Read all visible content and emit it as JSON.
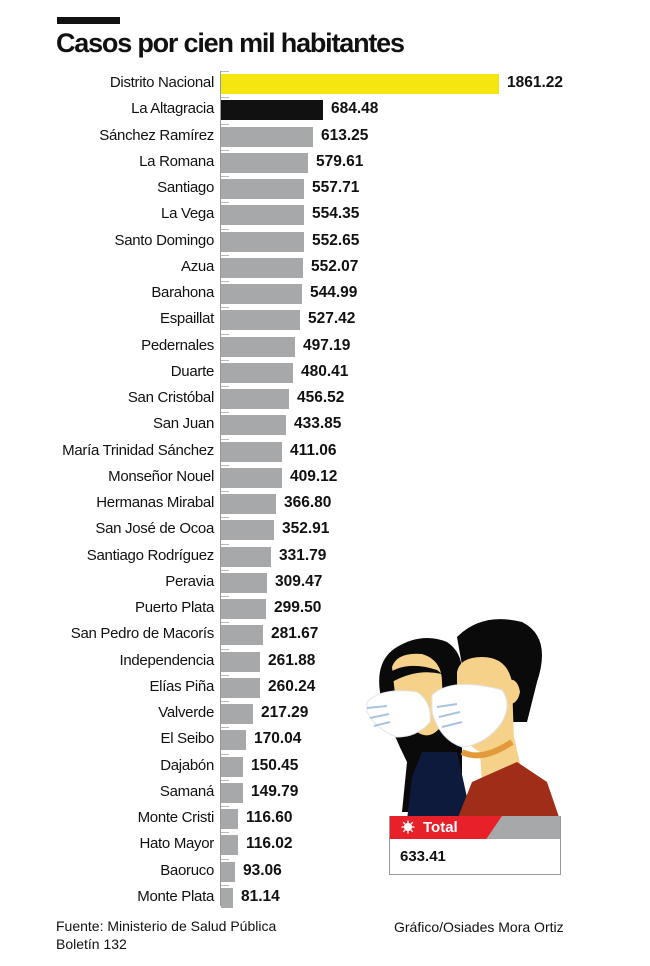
{
  "header": {
    "title": "Casos por cien mil habitantes"
  },
  "footer": {
    "source_line1": "Fuente: Ministerio de Salud Pública",
    "source_line2": "Boletín 132",
    "credit": "Gráfico/Osiades Mora Ortiz"
  },
  "total_box": {
    "label": "Total",
    "value": "633.41",
    "icon": "virus-icon"
  },
  "colors": {
    "highlight_first": "#f5e60f",
    "highlight_second": "#111111",
    "default_bar": "#a7a8aa",
    "total_accent": "#e8202a"
  },
  "chart_data": {
    "type": "bar",
    "orientation": "horizontal",
    "title": "Casos por cien mil habitantes",
    "xlabel": "",
    "ylabel": "",
    "grid": false,
    "legend": "none",
    "xlim": [
      0,
      1861.22
    ],
    "categories": [
      "Distrito Nacional",
      "La Altagracia",
      "Sánchez Ramírez",
      "La Romana",
      "Santiago",
      "La Vega",
      "Santo Domingo",
      "Azua",
      "Barahona",
      "Espaillat",
      "Pedernales",
      "Duarte",
      "San Cristóbal",
      "San Juan",
      "María Trinidad Sánchez",
      "Monseñor Nouel",
      "Hermanas Mirabal",
      "San José de Ocoa",
      "Santiago Rodríguez",
      "Peravia",
      "Puerto Plata",
      "San Pedro de Macorís",
      "Independencia",
      "Elías Piña",
      "Valverde",
      "El Seibo",
      "Dajabón",
      "Samaná",
      "Monte Cristi",
      "Hato Mayor",
      "Baoruco",
      "Monte Plata"
    ],
    "values": [
      1861.22,
      684.48,
      613.25,
      579.61,
      557.71,
      554.35,
      552.65,
      552.07,
      544.99,
      527.42,
      497.19,
      480.41,
      456.52,
      433.85,
      411.06,
      409.12,
      366.8,
      352.91,
      331.79,
      309.47,
      299.5,
      281.67,
      261.88,
      260.24,
      217.29,
      170.04,
      150.45,
      149.79,
      116.6,
      116.02,
      93.06,
      81.14
    ],
    "value_labels": [
      "1861.22",
      "684.48",
      "613.25",
      "579.61",
      "557.71",
      "554.35",
      "552.65",
      "552.07",
      "544.99",
      "527.42",
      "497.19",
      "480.41",
      "456.52",
      "433.85",
      "411.06",
      "409.12",
      "366.80",
      "352.91",
      "331.79",
      "309.47",
      "299.50",
      "281.67",
      "261.88",
      "260.24",
      "217.29",
      "170.04",
      "150.45",
      "149.79",
      "116.60",
      "116.02",
      "93.06",
      "81.14"
    ],
    "bar_colors": [
      "#f5e60f",
      "#111111"
    ],
    "annotations": [
      {
        "text": "Total",
        "value": "633.41"
      }
    ],
    "source": "Fuente: Ministerio de Salud Pública, Boletín 132"
  }
}
